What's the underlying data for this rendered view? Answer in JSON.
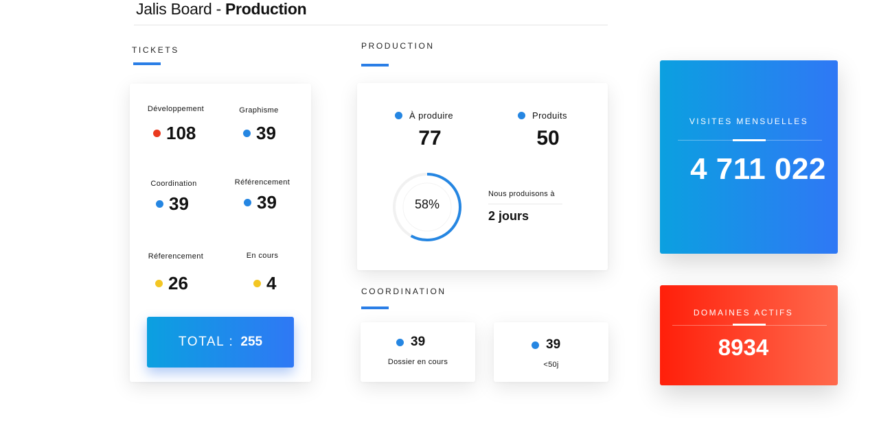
{
  "header": {
    "title_light": "Jalis Board - ",
    "title_bold": "Production"
  },
  "tickets": {
    "section_title": "TICKETS",
    "items": [
      {
        "label": "Développement",
        "value": "108",
        "color": "#ea3a1f"
      },
      {
        "label": "Graphisme",
        "value": "39",
        "color": "#2586e2"
      },
      {
        "label": "Coordination",
        "value": "39",
        "color": "#2586e2"
      },
      {
        "label": "Référencement",
        "value": "39",
        "color": "#2586e2"
      },
      {
        "label": "Réferencement",
        "value": "26",
        "color": "#f3c623"
      },
      {
        "label": "En cours",
        "value": "4",
        "color": "#f3c623"
      }
    ],
    "total": {
      "label": "TOTAL :",
      "value": "255"
    }
  },
  "production": {
    "section_title": "PRODUCTION",
    "a_produire": {
      "label": "À produire",
      "value": "77",
      "color": "#2586e2"
    },
    "produits": {
      "label": "Produits",
      "value": "50",
      "color": "#2586e2"
    },
    "progress": {
      "text": "58%",
      "fraction": 0.58
    },
    "delay": {
      "label": "Nous produisons à",
      "value": "2 jours"
    }
  },
  "coordination": {
    "section_title": "COORDINATION",
    "cards": [
      {
        "value": "39",
        "label": "Dossier en cours",
        "color": "#2586e2"
      },
      {
        "value": "39",
        "label": "<50j",
        "color": "#2586e2"
      }
    ]
  },
  "visites": {
    "title": "VISITES MENSUELLES",
    "value": "4 711 022"
  },
  "domaines": {
    "title": "DOMAINES ACTIFS",
    "value": "8934"
  },
  "colors": {
    "accent": "#2a7ee6",
    "blue_gradient": [
      "#0ba0e0",
      "#2f78f5"
    ],
    "red_gradient": [
      "#ff1f0a",
      "#ff6a4d"
    ]
  }
}
